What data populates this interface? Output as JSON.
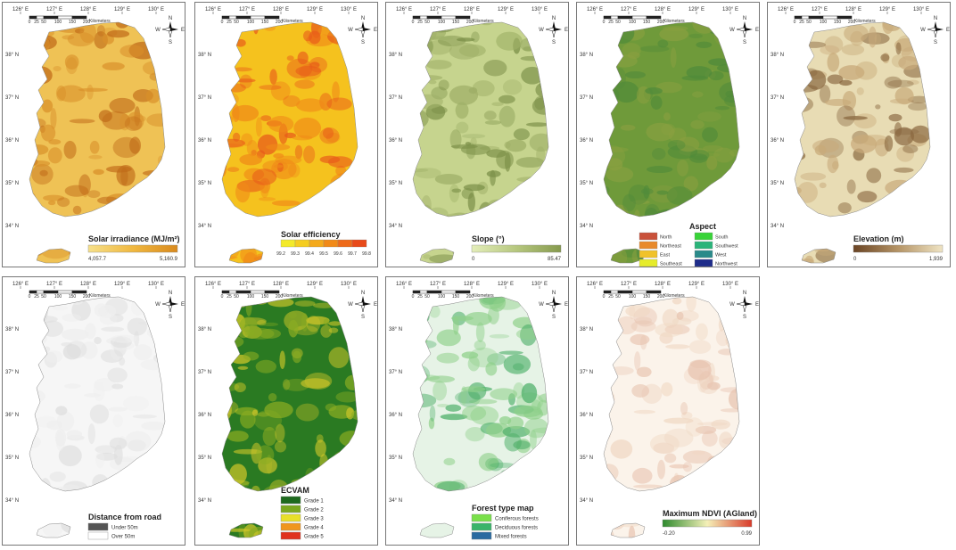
{
  "lon_labels": [
    "126° E",
    "127° E",
    "128° E",
    "129° E",
    "130° E"
  ],
  "lat_labels": [
    "38° N",
    "37° N",
    "36° N",
    "35° N",
    "34° N"
  ],
  "scale_ticks": [
    "0",
    "25",
    "50",
    "100",
    "150",
    "200"
  ],
  "scale_unit": "Kilometers",
  "compass": {
    "n": "N",
    "s": "S",
    "e": "E",
    "w": "W"
  },
  "panels": [
    {
      "id": "solar-irradiance",
      "legend_type": "ramp",
      "title": "Solar irradiance (MJ/m²)",
      "ramp_colors": [
        "#f6e08a",
        "#f0b840",
        "#d98a1e"
      ],
      "min_label": "4,057.7",
      "max_label": "5,160.9",
      "fill": [
        "#efc255",
        "#d9902a",
        "#c06a18"
      ]
    },
    {
      "id": "solar-efficiency",
      "legend_type": "classes",
      "title": "Solar efficiency",
      "class_colors": [
        "#f3ea2a",
        "#f5cd20",
        "#f4aa1c",
        "#f18a18",
        "#ee6a1a",
        "#e84a1a"
      ],
      "class_labels": [
        "99.2",
        "99.3",
        "99.4",
        "99.5",
        "99.6",
        "99.7",
        "99.8"
      ],
      "fill": [
        "#f5c21e",
        "#f08a18",
        "#e85a1a"
      ]
    },
    {
      "id": "slope",
      "legend_type": "ramp",
      "title": "Slope (°)",
      "ramp_colors": [
        "#e4eeba",
        "#b6c77e",
        "#869a4e"
      ],
      "min_label": "0",
      "max_label": "85.47",
      "fill": [
        "#c6d48e",
        "#9fb068",
        "#7b8f48"
      ]
    },
    {
      "id": "aspect",
      "legend_type": "two-col",
      "title": "Aspect",
      "items": [
        {
          "label": "North",
          "color": "#c9513a"
        },
        {
          "label": "South",
          "color": "#38d338"
        },
        {
          "label": "Northeast",
          "color": "#e88a2c"
        },
        {
          "label": "Southwest",
          "color": "#2ab47a"
        },
        {
          "label": "East",
          "color": "#f0c22a"
        },
        {
          "label": "West",
          "color": "#2a8a8a"
        },
        {
          "label": "Southeast",
          "color": "#e6ec2a"
        },
        {
          "label": "Northwest",
          "color": "#1e2c8a"
        }
      ],
      "fill": [
        "#6f9a3a",
        "#4f8a3a",
        "#8aa040"
      ]
    },
    {
      "id": "elevation",
      "legend_type": "ramp",
      "title": "Elevation (m)",
      "ramp_colors": [
        "#6a4424",
        "#b59466",
        "#efe4c4"
      ],
      "min_label": "0",
      "max_label": "1,939",
      "fill": [
        "#e8dcb4",
        "#c8aa7a",
        "#8a6840"
      ]
    },
    {
      "id": "distance-from-road",
      "legend_type": "list",
      "title": "Distance from road",
      "items": [
        {
          "label": "Under 50m",
          "color": "#555555"
        },
        {
          "label": "Over 50m",
          "color": "#ffffff"
        }
      ],
      "fill": [
        "#f6f6f6",
        "#eeeeee",
        "#dddddd"
      ]
    },
    {
      "id": "ecvam",
      "legend_type": "list",
      "title": "ECVAM",
      "items": [
        {
          "label": "Grade 1",
          "color": "#1e6a1e"
        },
        {
          "label": "Grade 2",
          "color": "#7aa81e"
        },
        {
          "label": "Grade 3",
          "color": "#e8e02a"
        },
        {
          "label": "Grade 4",
          "color": "#f0961e"
        },
        {
          "label": "Grade 5",
          "color": "#e0321e"
        }
      ],
      "fill": [
        "#2a7a22",
        "#8aac22",
        "#d2c82a"
      ]
    },
    {
      "id": "forest-type",
      "legend_type": "list",
      "title": "Forest type map",
      "items": [
        {
          "label": "Coniferous forests",
          "color": "#7ae04a"
        },
        {
          "label": "Deciduous forests",
          "color": "#3ab46a"
        },
        {
          "label": "Mixed forests",
          "color": "#2a6aa0"
        }
      ],
      "fill": [
        "#e6f3e6",
        "#8fd08a",
        "#4fb06a"
      ]
    },
    {
      "id": "ndvi",
      "legend_type": "ramp",
      "title": "Maximum NDVI (AGland)",
      "ramp_colors": [
        "#2e8a2e",
        "#f4f0b8",
        "#d83a2a"
      ],
      "min_label": "-0.20",
      "max_label": "0.99",
      "fill": [
        "#fbf3ea",
        "#f0d8c4",
        "#e8c4b0"
      ]
    }
  ]
}
